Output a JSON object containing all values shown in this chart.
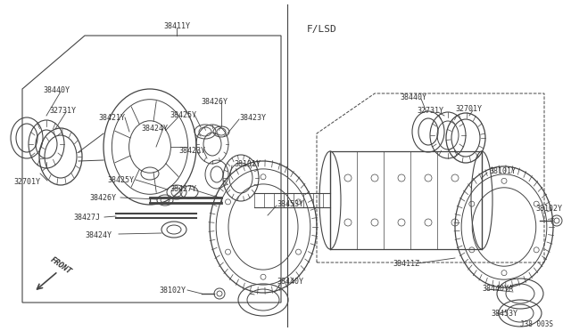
{
  "bg_color": "#ffffff",
  "line_color": "#444444",
  "text_color": "#333333",
  "fig_width": 6.4,
  "fig_height": 3.72,
  "diagram_id": "J38 003S",
  "flsd_label": "F/LSD",
  "front_label": "FRONT"
}
